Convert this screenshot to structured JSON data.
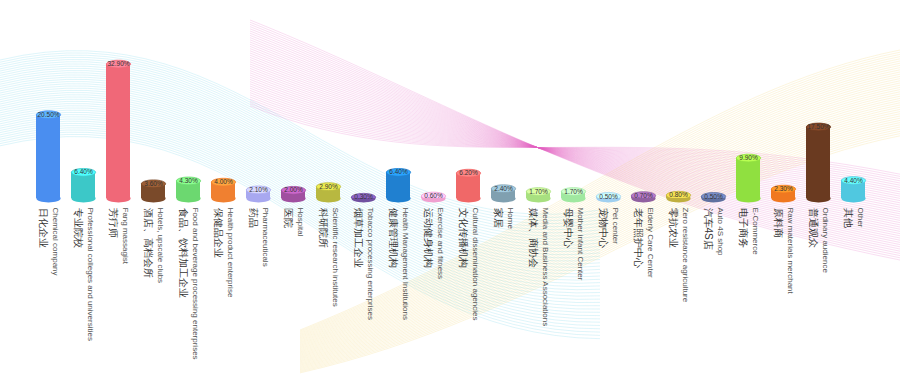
{
  "chart_data": {
    "type": "bar",
    "categories": [
      "日化企业",
      "专业院校",
      "芳疗师",
      "酒店、高档会所",
      "食品、饮料加工企业",
      "保健品企业",
      "药品",
      "医院",
      "科研院所",
      "烟草加工企业",
      "健康管理机构",
      "运动健身机构",
      "文化传播机构",
      "家居",
      "媒体、商协会",
      "母婴中心",
      "宠物中心",
      "老年照护中心",
      "零抗农业",
      "汽车4S店",
      "电子商务",
      "原料商",
      "普通观众",
      "其他"
    ],
    "category_labels_en": [
      "Chemical company",
      "Professional colleges and universities",
      "Fang massagist",
      "Hotels, upscale clubs",
      "Food and beverage processing enterprises",
      "Health product enterprise",
      "Pharmaceuticals",
      "Hospital",
      "Scientific research institutes",
      "Tobacco processing enterprises",
      "Health Management Institutions",
      "Exercise and fitness",
      "Cultural dissemination agencies",
      "Home",
      "Media and Business Associations",
      "Mother infant Center",
      "Pet center",
      "Elderly Care Center",
      "Zero resistance agriculture",
      "Auto 4S shop",
      "E-Commerce",
      "Raw materials merchant",
      "Ordinary audience",
      "Other"
    ],
    "values": [
      20.5,
      6.4,
      32.9,
      3.6,
      4.3,
      4.0,
      2.1,
      2.0,
      2.9,
      0.3,
      6.4,
      0.6,
      6.2,
      2.4,
      1.7,
      1.7,
      0.5,
      0.7,
      0.8,
      0.5,
      9.9,
      2.3,
      17.5,
      4.4
    ],
    "value_labels": [
      "20.50%",
      "6.40%",
      "32.90%",
      "3.60%",
      "4.30%",
      "4.00%",
      "2.10%",
      "2.00%",
      "2.90%",
      "0.30%",
      "6.40%",
      "0.60%",
      "6.20%",
      "2.40%",
      "1.70%",
      "1.70%",
      "0.50%",
      "0.70%",
      "0.80%",
      "0.50%",
      "9.90%",
      "2.30%",
      "17.50%",
      "4.40%"
    ],
    "colors": [
      "#4a8ef0",
      "#3cc8c8",
      "#f06878",
      "#7a4a2a",
      "#6cd870",
      "#f08030",
      "#a8a8f0",
      "#a050a0",
      "#b8b840",
      "#7050a0",
      "#2080d0",
      "#f0a0d0",
      "#f06868",
      "#80a0b0",
      "#a8e080",
      "#a0e8a0",
      "#a0d0f0",
      "#9060a0",
      "#c0b040",
      "#6070a0",
      "#90e040",
      "#f07820",
      "#6a3a20",
      "#50c8e0"
    ],
    "ylim": [
      0,
      35
    ],
    "data_labels": true,
    "tick_labels": false
  }
}
